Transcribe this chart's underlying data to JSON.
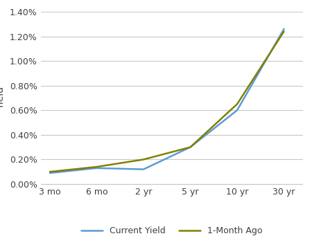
{
  "x_labels": [
    "3 mo",
    "6 mo",
    "2 yr",
    "5 yr",
    "10 yr",
    "30 yr"
  ],
  "x_positions": [
    0,
    1,
    2,
    3,
    4,
    5
  ],
  "current_yield": [
    0.0009,
    0.0013,
    0.0012,
    0.003,
    0.006,
    0.0126
  ],
  "one_month_ago": [
    0.001,
    0.0014,
    0.002,
    0.003,
    0.0065,
    0.0124
  ],
  "current_yield_color": "#5B9BD5",
  "one_month_ago_color": "#808000",
  "legend_labels": [
    "Current Yield",
    "1-Month Ago"
  ],
  "ylabel": "Yield",
  "ylim_min": 0.0,
  "ylim_max": 0.014,
  "yticks": [
    0.0,
    0.002,
    0.004,
    0.006,
    0.008,
    0.01,
    0.012,
    0.014
  ],
  "ytick_labels": [
    "0.00%",
    "0.20%",
    "0.40%",
    "0.60%",
    "0.80%",
    "1.00%",
    "1.20%",
    "1.40%"
  ],
  "background_color": "#FFFFFF",
  "grid_color": "#C8C8C8",
  "line_width": 1.8,
  "axis_label_fontsize": 10,
  "tick_fontsize": 9,
  "legend_fontsize": 9
}
